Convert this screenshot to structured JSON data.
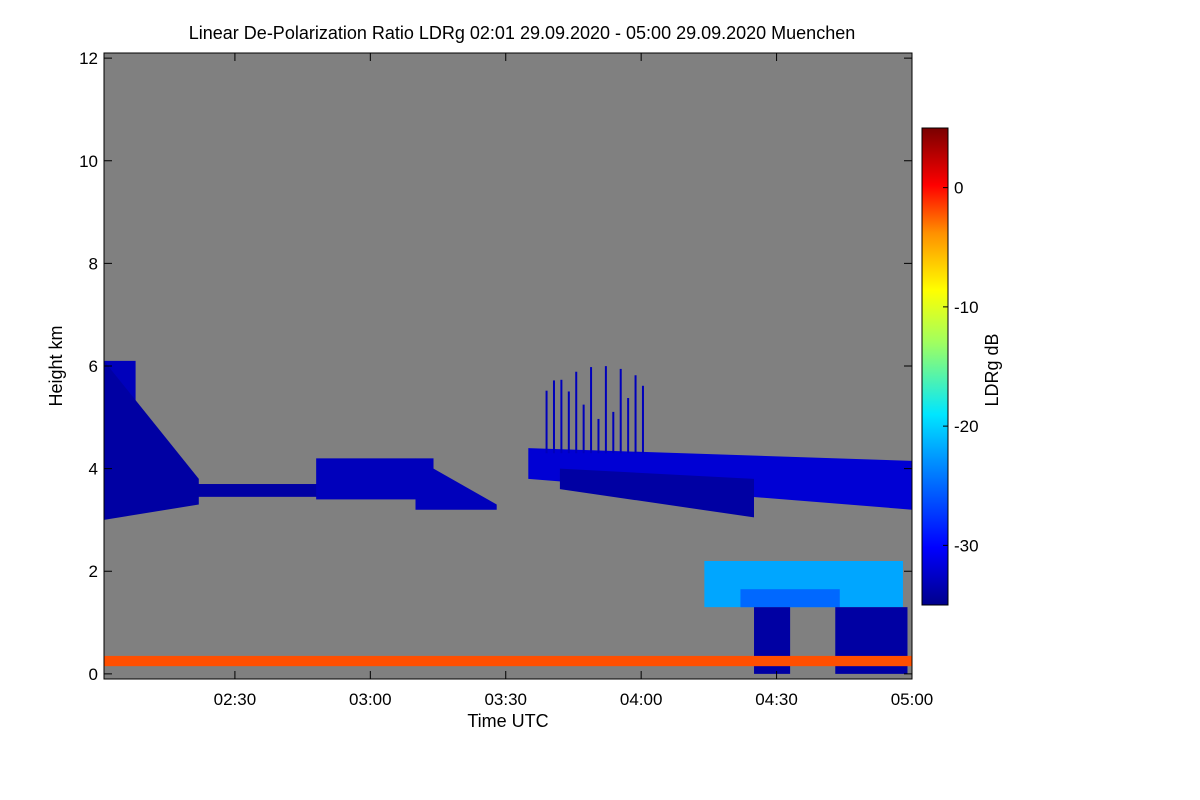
{
  "chart_data": {
    "type": "heatmap",
    "title": "Linear De-Polarization Ratio LDRg   02:01 29.09.2020 - 05:00 29.09.2020 Muenchen",
    "xlabel": "Time UTC",
    "ylabel": "Height km",
    "colorbar_label": "LDRg dB",
    "x_range_minutes_utc": [
      121,
      300
    ],
    "x_ticks": [
      {
        "label": "02:30",
        "minutes": 150
      },
      {
        "label": "03:00",
        "minutes": 180
      },
      {
        "label": "03:30",
        "minutes": 210
      },
      {
        "label": "04:00",
        "minutes": 240
      },
      {
        "label": "04:30",
        "minutes": 270
      },
      {
        "label": "05:00",
        "minutes": 300
      }
    ],
    "ylim": [
      -0.1,
      12.1
    ],
    "y_ticks": [
      0,
      2,
      4,
      6,
      8,
      10,
      12
    ],
    "colorbar_range": [
      -35,
      5
    ],
    "colorbar_ticks": [
      0,
      -10,
      -20,
      -30
    ],
    "background_color": "#808080",
    "features": [
      {
        "name": "upper cloud layer",
        "type": "rect",
        "t": [
          121,
          128
        ],
        "h": [
          4.0,
          6.1
        ],
        "ldr": -33
      },
      {
        "name": "descending cloud band",
        "type": "band",
        "t": [
          121,
          142
        ],
        "h_top": [
          6.1,
          3.8
        ],
        "h_bot": [
          3.0,
          3.3
        ],
        "ldr": -34
      },
      {
        "name": "thin cloud layer",
        "type": "rect",
        "t": [
          140,
          170
        ],
        "h": [
          3.45,
          3.7
        ],
        "ldr": -34
      },
      {
        "name": "cloud patch",
        "type": "rect",
        "t": [
          168,
          194
        ],
        "h": [
          3.4,
          4.2
        ],
        "ldr": -33
      },
      {
        "name": "thinning cloud patch",
        "type": "band",
        "t": [
          190,
          208
        ],
        "h_top": [
          4.2,
          3.3
        ],
        "h_bot": [
          3.2,
          3.2
        ],
        "ldr": -33
      },
      {
        "name": "main cloud layer",
        "type": "band",
        "t": [
          215,
          300
        ],
        "h_top": [
          4.4,
          4.15
        ],
        "h_bot": [
          3.8,
          3.2
        ],
        "ldr": -32
      },
      {
        "name": "cloud base",
        "type": "band",
        "t": [
          222,
          265
        ],
        "h_top": [
          4.0,
          3.8
        ],
        "h_bot": [
          3.6,
          3.05
        ],
        "ldr": -34
      },
      {
        "name": "fall streaks",
        "type": "streaks",
        "t": [
          218,
          241
        ],
        "h": [
          4.3,
          6.0
        ],
        "ldr": -33
      },
      {
        "name": "low cloud tops",
        "type": "rect",
        "t": [
          254,
          298
        ],
        "h": [
          1.3,
          2.2
        ],
        "ldr": -22
      },
      {
        "name": "low cloud core",
        "type": "rect",
        "t": [
          262,
          284
        ],
        "h": [
          1.3,
          1.65
        ],
        "ldr": -25
      },
      {
        "name": "precipitation column 1",
        "type": "rect",
        "t": [
          265,
          273
        ],
        "h": [
          0.0,
          1.3
        ],
        "ldr": -34
      },
      {
        "name": "precipitation column 2",
        "type": "rect",
        "t": [
          283,
          299
        ],
        "h": [
          0.0,
          1.3
        ],
        "ldr": -34
      },
      {
        "name": "ground clutter",
        "type": "rect",
        "t": [
          121,
          300
        ],
        "h": [
          0.15,
          0.35
        ],
        "ldr": -2
      }
    ]
  }
}
